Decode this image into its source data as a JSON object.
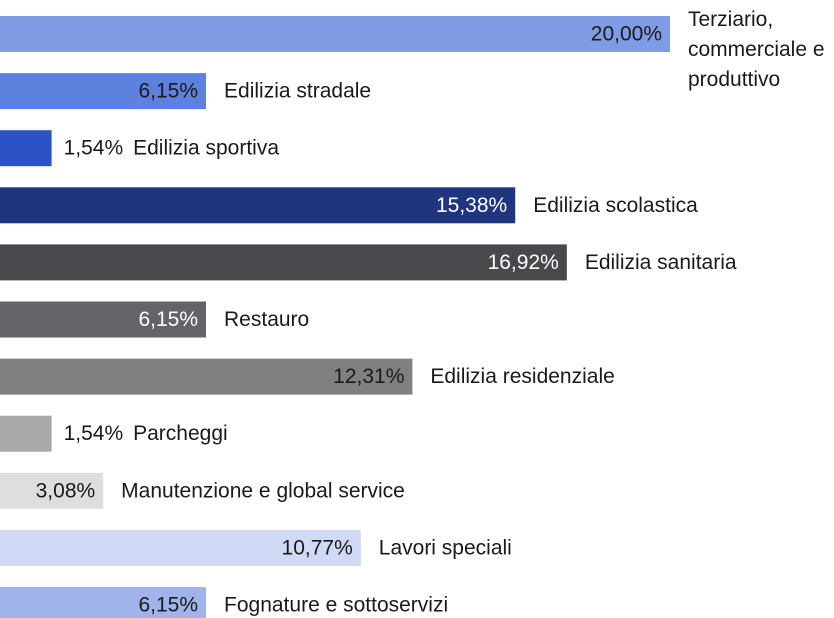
{
  "chart_data": {
    "type": "bar",
    "orientation": "horizontal",
    "categories": [
      "Terziario, commerciale e produttivo",
      "Edilizia stradale",
      "Edilizia sportiva",
      "Edilizia scolastica",
      "Edilizia sanitaria",
      "Restauro",
      "Edilizia residenziale",
      "Parcheggi",
      "Manutenzione e global service",
      "Lavori speciali",
      "Fognature e sottoservizi"
    ],
    "values": [
      20.0,
      6.15,
      1.54,
      15.38,
      16.92,
      6.15,
      12.31,
      1.54,
      3.08,
      10.77,
      6.15
    ],
    "value_labels": [
      "20,00%",
      "6,15%",
      "1,54%",
      "15,38%",
      "16,92%",
      "6,15%",
      "12,31%",
      "1,54%",
      "3,08%",
      "10,77%",
      "6,15%"
    ],
    "colors": [
      "#7f9be3",
      "#5e81e0",
      "#2b53c6",
      "#1f3580",
      "#48484d",
      "#646468",
      "#808080",
      "#a8a8aa",
      "#dedede",
      "#d0d9f5",
      "#a0b4ea"
    ]
  }
}
